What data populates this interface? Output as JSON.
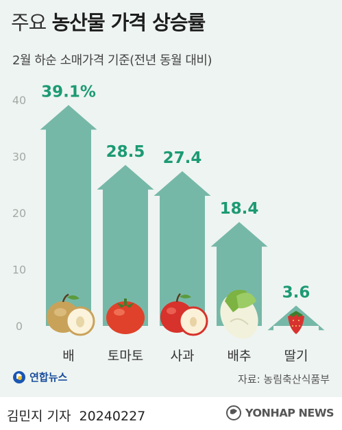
{
  "header": {
    "title_prefix": "주요",
    "title_main": "농산물 가격 상승률",
    "subtitle": "2월 하순 소매가격 기준(전년 동월 대비)"
  },
  "chart_data": {
    "type": "bar",
    "title": "주요 농산물 가격 상승률",
    "subtitle": "2월 하순 소매가격 기준(전년 동월 대비)",
    "categories": [
      "배",
      "토마토",
      "사과",
      "배추",
      "딸기"
    ],
    "values": [
      39.1,
      28.5,
      27.4,
      18.4,
      3.6
    ],
    "value_labels": [
      "39.1%",
      "28.5",
      "27.4",
      "18.4",
      "3.6"
    ],
    "yticks": [
      "0",
      "10",
      "20",
      "30",
      "40"
    ],
    "ylim": [
      0,
      40
    ],
    "grid": false,
    "bar_shape": "arrow",
    "colors": {
      "bar": "#76b8a8",
      "value_label": "#1c9a73",
      "background": "#eef4f1"
    }
  },
  "footer": {
    "logo": "연합뉴스",
    "source": "자료: 농림축산식품부",
    "author": "김민지 기자",
    "date": "20240227",
    "agency": "YONHAP NEWS"
  }
}
